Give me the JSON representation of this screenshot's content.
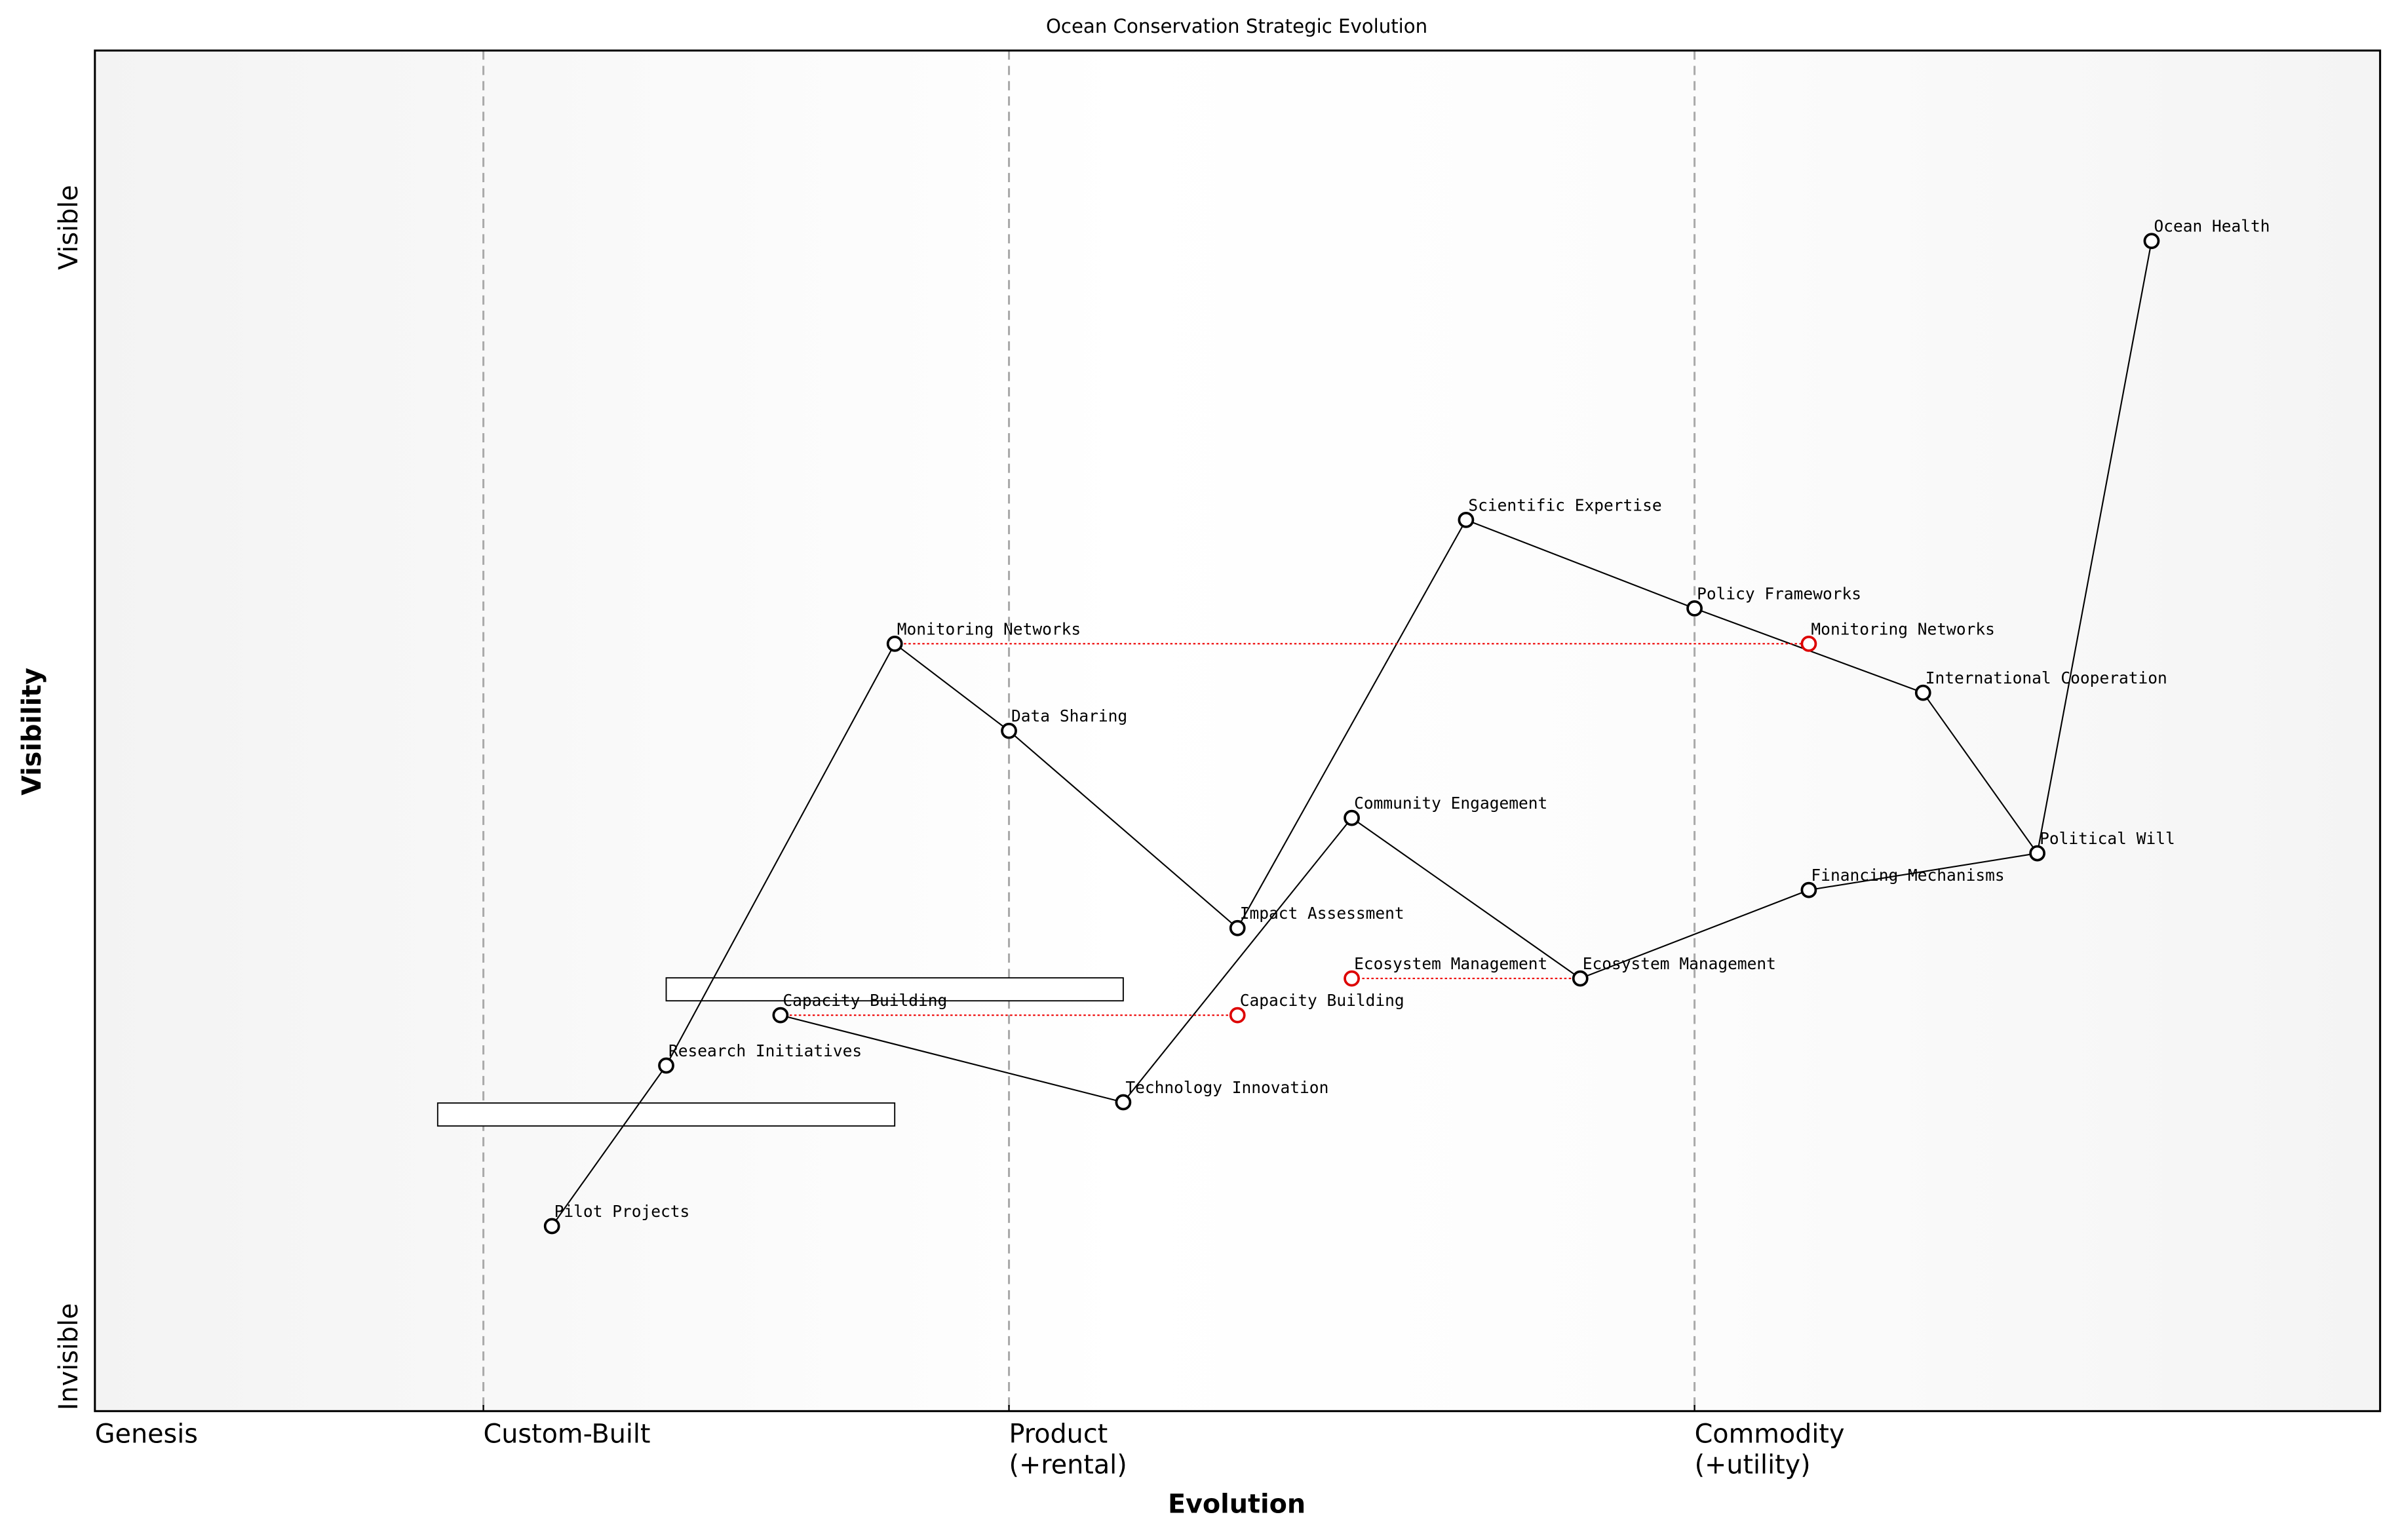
{
  "chart_data": {
    "type": "wardley",
    "title": "Ocean Conservation Strategic Evolution",
    "xlabel": "Evolution",
    "ylabel": "Visibility",
    "xlim": [
      0,
      1
    ],
    "ylim": [
      0,
      1
    ],
    "xticks": [
      {
        "value": 0,
        "label": "Genesis"
      },
      {
        "value": 0.17,
        "label": "Custom-Built"
      },
      {
        "value": 0.4,
        "label": "Product\n(+rental)"
      },
      {
        "value": 0.7,
        "label": "Commodity\n(+utility)"
      }
    ],
    "yticks": [
      {
        "value": 0.04,
        "label": "Invisible"
      },
      {
        "value": 0.87,
        "label": "Visible"
      }
    ],
    "grid": true,
    "components": [
      {
        "name": "Ocean Health",
        "evolution": 0.9,
        "visibility": 0.86
      },
      {
        "name": "Scientific Expertise",
        "evolution": 0.6,
        "visibility": 0.655
      },
      {
        "name": "Policy Frameworks",
        "evolution": 0.7,
        "visibility": 0.59
      },
      {
        "name": "Monitoring Networks",
        "evolution": 0.35,
        "visibility": 0.564
      },
      {
        "name": "International Cooperation",
        "evolution": 0.8,
        "visibility": 0.528
      },
      {
        "name": "Data Sharing",
        "evolution": 0.4,
        "visibility": 0.5
      },
      {
        "name": "Community Engagement",
        "evolution": 0.55,
        "visibility": 0.436
      },
      {
        "name": "Political Will",
        "evolution": 0.85,
        "visibility": 0.41
      },
      {
        "name": "Financing Mechanisms",
        "evolution": 0.75,
        "visibility": 0.383
      },
      {
        "name": "Impact Assessment",
        "evolution": 0.5,
        "visibility": 0.355
      },
      {
        "name": "Ecosystem Management",
        "evolution": 0.65,
        "visibility": 0.318
      },
      {
        "name": "Capacity Building",
        "evolution": 0.3,
        "visibility": 0.291
      },
      {
        "name": "Research Initiatives",
        "evolution": 0.25,
        "visibility": 0.254
      },
      {
        "name": "Technology Innovation",
        "evolution": 0.45,
        "visibility": 0.227
      },
      {
        "name": "Pilot Projects",
        "evolution": 0.2,
        "visibility": 0.136
      }
    ],
    "links": [
      [
        "Pilot Projects",
        "Research Initiatives"
      ],
      [
        "Research Initiatives",
        "Monitoring Networks"
      ],
      [
        "Monitoring Networks",
        "Data Sharing"
      ],
      [
        "Data Sharing",
        "Impact Assessment"
      ],
      [
        "Impact Assessment",
        "Scientific Expertise"
      ],
      [
        "Scientific Expertise",
        "Policy Frameworks"
      ],
      [
        "Policy Frameworks",
        "International Cooperation"
      ],
      [
        "International Cooperation",
        "Political Will"
      ],
      [
        "Political Will",
        "Ocean Health"
      ],
      [
        "Political Will",
        "Financing Mechanisms"
      ],
      [
        "Financing Mechanisms",
        "Ecosystem Management"
      ],
      [
        "Ecosystem Management",
        "Community Engagement"
      ],
      [
        "Community Engagement",
        "Technology Innovation"
      ],
      [
        "Technology Innovation",
        "Capacity Building"
      ]
    ],
    "evolve": [
      {
        "name": "Monitoring Networks",
        "evolution": 0.75,
        "visibility": 0.564
      },
      {
        "name": "Ecosystem Management",
        "evolution": 0.55,
        "visibility": 0.318
      },
      {
        "name": "Capacity Building",
        "evolution": 0.5,
        "visibility": 0.291
      }
    ],
    "pipelines": [
      {
        "start": 0.25,
        "end": 0.45,
        "visibility": 0.31
      },
      {
        "start": 0.15,
        "end": 0.35,
        "visibility": 0.218
      }
    ]
  }
}
